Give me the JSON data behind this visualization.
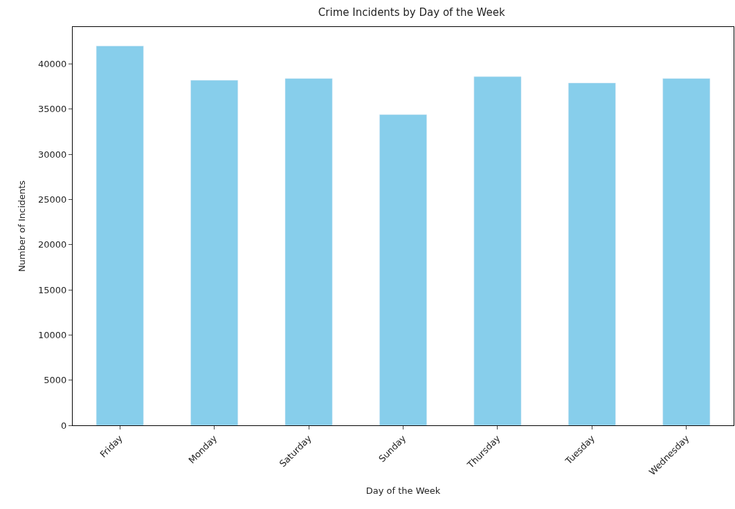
{
  "chart_data": {
    "type": "bar",
    "title": "Crime Incidents by Day of the Week",
    "xlabel": "Day of the Week",
    "ylabel": "Number of Incidents",
    "categories": [
      "Friday",
      "Monday",
      "Saturday",
      "Sunday",
      "Thursday",
      "Tuesday",
      "Wednesday"
    ],
    "values": [
      42000,
      38200,
      38400,
      34400,
      38600,
      37900,
      38400
    ],
    "color": "#87ceeb",
    "ylim": [
      0,
      44100
    ],
    "yticks": [
      0,
      5000,
      10000,
      15000,
      20000,
      25000,
      30000,
      35000,
      40000
    ],
    "legend": false
  }
}
